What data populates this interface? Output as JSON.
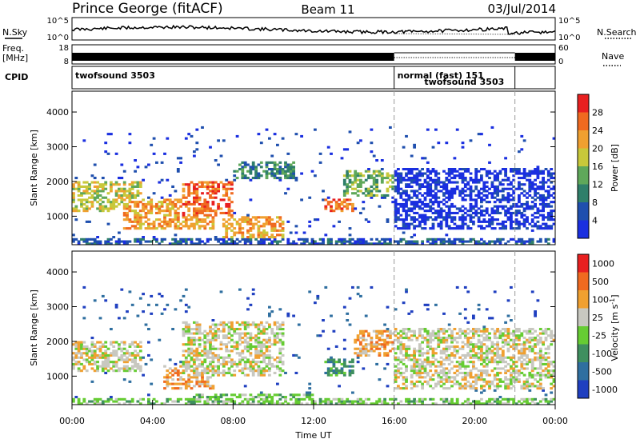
{
  "header": {
    "station": "Prince George (fitACF)",
    "beam": "Beam 11",
    "date": "03/Jul/2014"
  },
  "side_labels": {
    "nsky": "N.Sky",
    "freq_line1": "Freq.",
    "freq_line2": "[MHz]",
    "cpid": "CPID",
    "nsearch": "N.Search",
    "nave": "Nave"
  },
  "nsky_ticks": [
    "10^5",
    "10^0"
  ],
  "nsearch_ticks": [
    "10^5",
    "10^0"
  ],
  "freq_ticks": [
    "18",
    "8"
  ],
  "nave_ticks": [
    "60",
    "0"
  ],
  "cpid_segments": [
    {
      "label": "twofsound 3503",
      "start": 0,
      "end": 16
    },
    {
      "label": "normal (fast) 151",
      "start": 16,
      "end": 22
    },
    {
      "label": "twofsound 3503",
      "start": 22,
      "end": 24
    }
  ],
  "colors": {
    "power": [
      "#1a2fe0",
      "#1f4fae",
      "#2f7f6a",
      "#5fa85a",
      "#c8c83a",
      "#f0a030",
      "#f06a20",
      "#e82020"
    ],
    "velocity": [
      "#1f3fc0",
      "#2f6fa0",
      "#3f8f5f",
      "#66cc33",
      "#c8c8c0",
      "#f0a030",
      "#f06a20",
      "#e82020"
    ],
    "grey_tone": "#c8c8c0"
  },
  "chart_data": [
    {
      "type": "heatmap",
      "title": "",
      "xlabel": "Time UT",
      "ylabel": "Slant Range [km]",
      "xlim": [
        0,
        24
      ],
      "ylim": [
        180,
        4600
      ],
      "x_ticks": [
        0,
        4,
        8,
        12,
        16,
        20,
        24
      ],
      "x_tick_labels": [
        "00:00",
        "04:00",
        "08:00",
        "12:00",
        "16:00",
        "20:00",
        "00:00"
      ],
      "y_ticks": [
        1000,
        2000,
        3000,
        4000
      ],
      "colorbar": {
        "label": "Power [dB]",
        "ticks": [
          4,
          8,
          12,
          16,
          20,
          24,
          28
        ],
        "range": [
          0,
          32
        ]
      },
      "echo_regions": [
        {
          "t0": 0.0,
          "t1": 3.5,
          "r0": 1100,
          "r1": 2000,
          "level": 4
        },
        {
          "t0": 2.5,
          "t1": 7.0,
          "r0": 600,
          "r1": 1500,
          "level": 5
        },
        {
          "t0": 5.5,
          "t1": 8.0,
          "r0": 1000,
          "r1": 2000,
          "level": 6
        },
        {
          "t0": 7.5,
          "t1": 10.5,
          "r0": 400,
          "r1": 1000,
          "level": 5
        },
        {
          "t0": 8.0,
          "t1": 11.0,
          "r0": 2100,
          "r1": 2600,
          "level": 2
        },
        {
          "t0": 12.5,
          "t1": 14.0,
          "r0": 1100,
          "r1": 1500,
          "level": 6
        },
        {
          "t0": 13.5,
          "t1": 16.0,
          "r0": 1600,
          "r1": 2300,
          "level": 3
        },
        {
          "t0": 16.0,
          "t1": 24.0,
          "r0": 600,
          "r1": 2400,
          "level": 0
        },
        {
          "t0": 0.0,
          "t1": 24.0,
          "r0": 200,
          "r1": 400,
          "level": 1
        }
      ]
    },
    {
      "type": "heatmap",
      "title": "",
      "xlabel": "Time UT",
      "ylabel": "Slant Range [km]",
      "xlim": [
        0,
        24
      ],
      "ylim": [
        180,
        4600
      ],
      "x_ticks": [
        0,
        4,
        8,
        12,
        16,
        20,
        24
      ],
      "x_tick_labels": [
        "00:00",
        "04:00",
        "08:00",
        "12:00",
        "16:00",
        "20:00",
        "00:00"
      ],
      "y_ticks": [
        1000,
        2000,
        3000,
        4000
      ],
      "colorbar": {
        "label": "Velocity [m s^-1]",
        "ticks": [
          "1000",
          "500",
          "100",
          "25",
          "-25",
          "-100",
          "-500",
          "-1000"
        ]
      },
      "echo_regions": [
        {
          "t0": 0.0,
          "t1": 3.5,
          "r0": 1100,
          "r1": 2000,
          "level": 4
        },
        {
          "t0": 4.5,
          "t1": 7.0,
          "r0": 600,
          "r1": 1300,
          "level": 5
        },
        {
          "t0": 5.5,
          "t1": 10.5,
          "r0": 1000,
          "r1": 2600,
          "level": 4
        },
        {
          "t0": 6.0,
          "t1": 12.0,
          "r0": 250,
          "r1": 500,
          "level": 3
        },
        {
          "t0": 12.5,
          "t1": 14.0,
          "r0": 1000,
          "r1": 1500,
          "level": 2
        },
        {
          "t0": 14.0,
          "t1": 16.0,
          "r0": 1600,
          "r1": 2300,
          "level": 5
        },
        {
          "t0": 16.0,
          "t1": 24.0,
          "r0": 600,
          "r1": 2400,
          "level": 4
        },
        {
          "t0": 0.0,
          "t1": 24.0,
          "r0": 200,
          "r1": 350,
          "level": 3
        }
      ]
    }
  ]
}
